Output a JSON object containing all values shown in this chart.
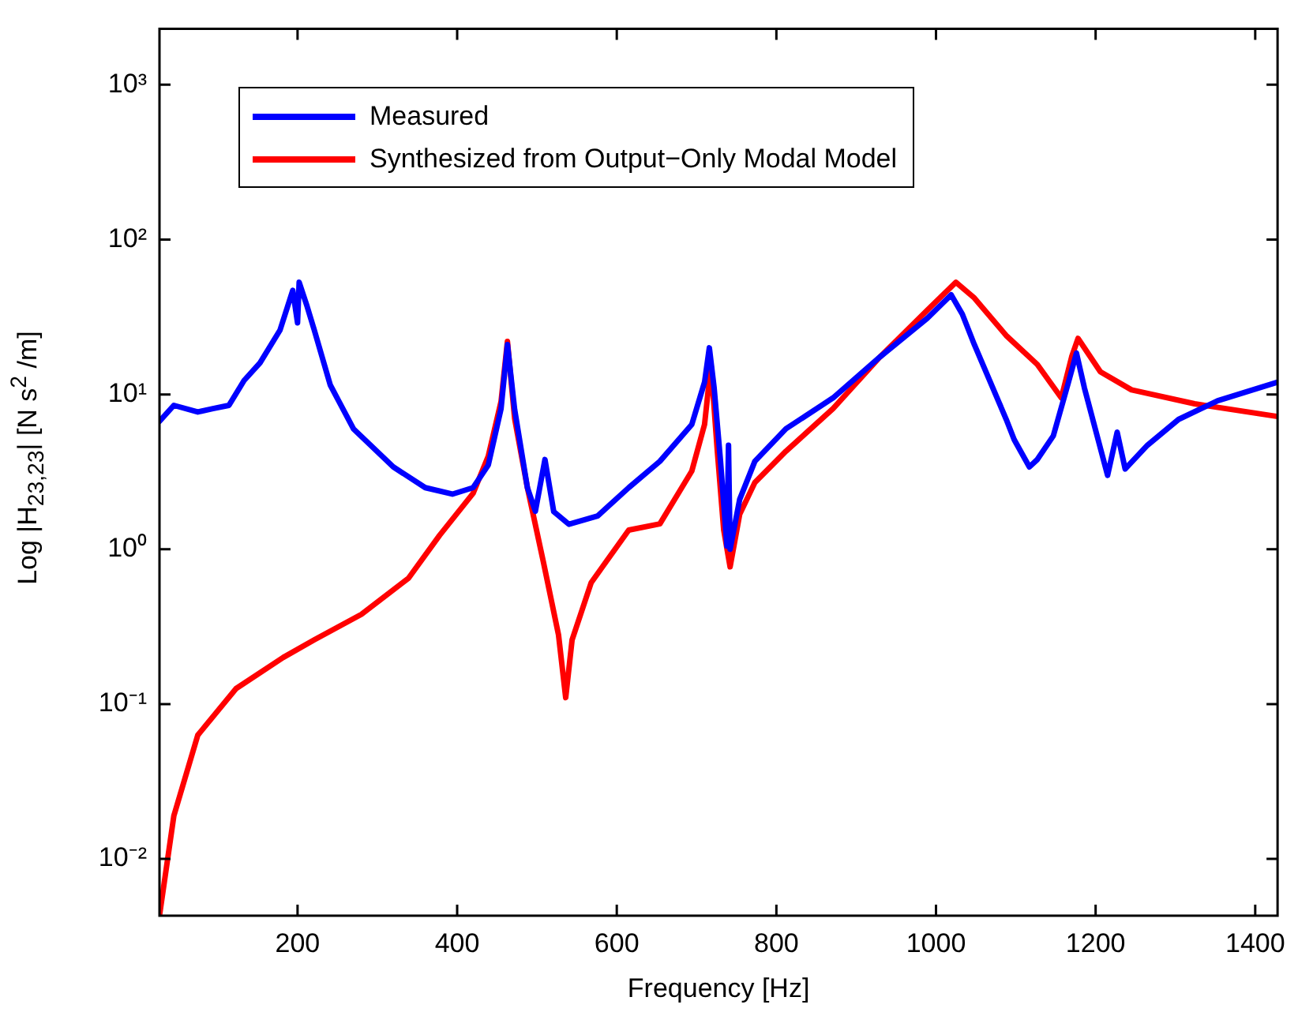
{
  "chart_data": {
    "type": "line",
    "xlabel": "Frequency [Hz]",
    "ylabel": "Log |H$_{23,23}$| [N s$^{2}$ /m]",
    "log": "y",
    "grid": false,
    "legend": "top left",
    "marker": "none",
    "line_style": "solid",
    "xlim": [
      27,
      1428
    ],
    "xticks": [
      200,
      400,
      600,
      800,
      1000,
      1200,
      1400
    ],
    "ylim": [
      0.0043,
      2300
    ],
    "yticks": [
      {
        "value": 0.01,
        "label": "10⁻²"
      },
      {
        "value": 0.1,
        "label": "10⁻¹"
      },
      {
        "value": 1,
        "label": "10⁰"
      },
      {
        "value": 10,
        "label": "10¹"
      },
      {
        "value": 100,
        "label": "10²"
      },
      {
        "value": 1000,
        "label": "10³"
      }
    ],
    "series": [
      {
        "name": "Measured",
        "color": "#0000ff",
        "x": [
          27,
          45,
          75,
          94,
          114,
          133,
          153,
          178,
          194,
          200,
          202,
          212,
          221,
          241,
          270,
          320,
          360,
          394,
          420,
          439,
          455,
          463,
          472,
          488,
          498,
          510,
          521,
          540,
          576,
          615,
          654,
          694,
          710,
          716,
          722,
          730,
          738,
          740,
          742,
          754,
          773,
          812,
          871,
          930,
          989,
          1019,
          1033,
          1048,
          1088,
          1098,
          1117,
          1127,
          1147,
          1166,
          1176,
          1186,
          1215,
          1227,
          1237,
          1265,
          1304,
          1353,
          1428
        ],
        "values": [
          6.7,
          8.5,
          7.7,
          8.1,
          8.5,
          12.3,
          16,
          26,
          47,
          29,
          53,
          37,
          26,
          11.5,
          6,
          3.4,
          2.5,
          2.27,
          2.5,
          3.5,
          8.1,
          21,
          8,
          2.5,
          1.76,
          3.8,
          1.75,
          1.45,
          1.64,
          2.5,
          3.7,
          6.4,
          12,
          20,
          11,
          3.7,
          1.05,
          4.7,
          1,
          2.1,
          3.7,
          6,
          9.5,
          17.5,
          31,
          44,
          33,
          21,
          6.9,
          5.1,
          3.4,
          3.8,
          5.4,
          12,
          18.5,
          11,
          3,
          5.7,
          3.3,
          4.7,
          6.9,
          9.1,
          12
        ]
      },
      {
        "name": "Synthesized from Output−Only Modal Model",
        "color": "#ff0000",
        "x": [
          27,
          45,
          75,
          123,
          182,
          221,
          280,
          339,
          378,
          420,
          439,
          455,
          463,
          472,
          488,
          508,
          527,
          536,
          544,
          568,
          615,
          654,
          694,
          710,
          718,
          726,
          734,
          742,
          754,
          773,
          812,
          871,
          930,
          989,
          1025,
          1048,
          1088,
          1127,
          1157,
          1170,
          1178,
          1206,
          1245,
          1324,
          1428
        ],
        "values": [
          0.0043,
          0.019,
          0.063,
          0.126,
          0.2,
          0.26,
          0.38,
          0.65,
          1.23,
          2.3,
          4,
          9,
          22,
          7,
          2.5,
          0.83,
          0.28,
          0.11,
          0.26,
          0.61,
          1.33,
          1.46,
          3.2,
          6.4,
          15.6,
          4.3,
          1.33,
          0.77,
          1.68,
          2.7,
          4.3,
          8.1,
          17.5,
          35,
          53,
          42,
          24,
          15.6,
          9.5,
          17.5,
          23,
          14,
          10.7,
          8.7,
          7.2
        ]
      }
    ]
  }
}
